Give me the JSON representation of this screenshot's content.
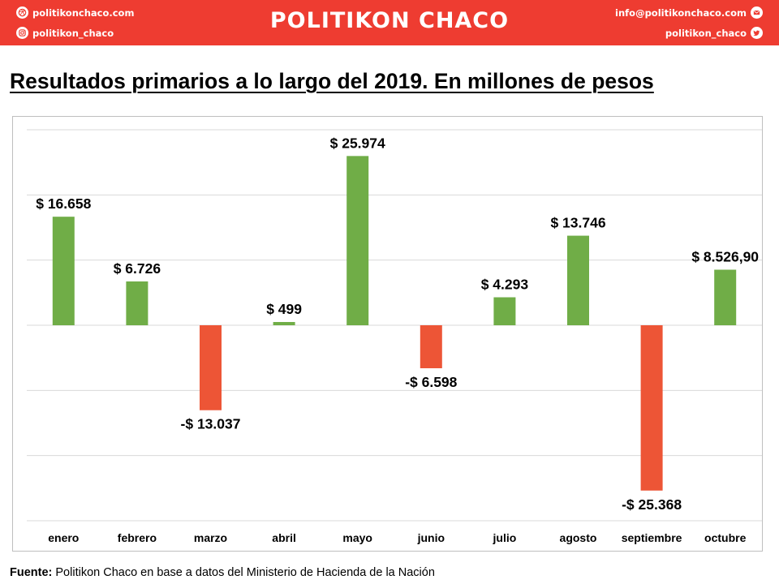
{
  "header": {
    "brand": "POLITIKON CHACO",
    "website": "politikonchaco.com",
    "instagram": "politikon_chaco",
    "email": "info@politikonchaco.com",
    "twitter": "politikon_chaco",
    "colors": {
      "banner": "#ee3c31",
      "text": "#ffffff"
    }
  },
  "footer": {
    "source_label": "Fuente:",
    "source_text": "Politikon Chaco en base a datos del Ministerio de Hacienda de la Nación"
  },
  "chart_data": {
    "type": "bar",
    "title": "Resultados primarios a lo largo del 2019. En millones de pesos",
    "xlabel": "",
    "ylabel": "",
    "categories": [
      "enero",
      "febrero",
      "marzo",
      "abril",
      "mayo",
      "junio",
      "julio",
      "agosto",
      "septiembre",
      "octubre"
    ],
    "series": [
      {
        "values": [
          16658,
          6726,
          -13037,
          499,
          25974,
          -6598,
          4293,
          13746,
          -25368,
          8526.9
        ],
        "labels": [
          "$ 16.658",
          "$ 6.726",
          "-$ 13.037",
          "$ 499",
          "$ 25.974",
          "-$ 6.598",
          "$ 4.293",
          "$ 13.746",
          "-$ 25.368",
          "$ 8.526,90"
        ]
      }
    ],
    "ylim": [
      -30000,
      30000
    ],
    "grid_step": 10000,
    "grid": true,
    "legend": "none",
    "colors": {
      "positive": "#70ad47",
      "negative": "#ed5536",
      "grid": "#d9d9d9"
    }
  }
}
